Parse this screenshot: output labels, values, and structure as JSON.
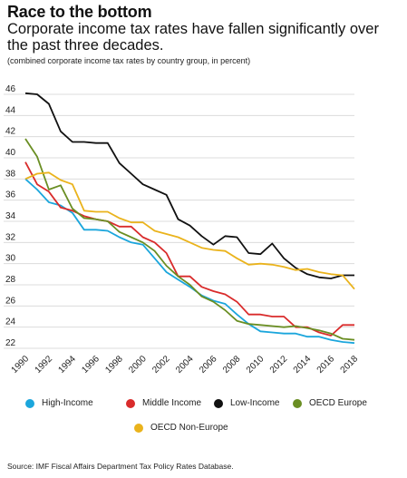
{
  "title": "Race to the bottom",
  "subtitle": "Corporate income tax rates have fallen significantly over the past three decades.",
  "note": "(combined corporate income tax rates by country group, in percent)",
  "source": "Source: IMF Fiscal Affairs Department Tax Policy Rates Database.",
  "chart_data": {
    "type": "line",
    "title": "Race to the bottom",
    "subtitle": "Corporate income tax rates have fallen significantly over the past three decades.",
    "xlabel": "",
    "ylabel": "",
    "x": [
      1990,
      1991,
      1992,
      1993,
      1994,
      1995,
      1996,
      1997,
      1998,
      1999,
      2000,
      2001,
      2002,
      2003,
      2004,
      2005,
      2006,
      2007,
      2008,
      2009,
      2010,
      2011,
      2012,
      2013,
      2014,
      2015,
      2016,
      2017,
      2018
    ],
    "xticks": [
      "1990",
      "1992",
      "1994",
      "1996",
      "1998",
      "2000",
      "2002",
      "2004",
      "2006",
      "2008",
      "2010",
      "2012",
      "2014",
      "2016",
      "2018"
    ],
    "yticks": [
      "22",
      "24",
      "26",
      "28",
      "30",
      "32",
      "34",
      "36",
      "38",
      "40",
      "42",
      "44",
      "46"
    ],
    "ylim": [
      22,
      46
    ],
    "grid": true,
    "legend_position": "bottom",
    "series": [
      {
        "name": "High-Income",
        "color": "#1ba6dc",
        "values": [
          38.0,
          37.0,
          35.8,
          35.5,
          34.8,
          33.2,
          33.2,
          33.1,
          32.5,
          32.0,
          31.8,
          30.5,
          29.2,
          28.5,
          27.8,
          27.0,
          26.5,
          26.2,
          25.2,
          24.3,
          23.6,
          23.5,
          23.4,
          23.4,
          23.1,
          23.1,
          22.8,
          22.6,
          22.5
        ]
      },
      {
        "name": "Middle Income",
        "color": "#d92b2b",
        "values": [
          39.6,
          37.5,
          36.8,
          35.3,
          35.0,
          34.5,
          34.2,
          34.0,
          33.5,
          33.5,
          32.5,
          32.0,
          31.0,
          28.8,
          28.8,
          27.8,
          27.4,
          27.1,
          26.4,
          25.2,
          25.2,
          25.0,
          25.0,
          24.0,
          24.0,
          23.5,
          23.2,
          24.2,
          24.2
        ]
      },
      {
        "name": "Low-Income",
        "color": "#111111",
        "values": [
          46.1,
          46.0,
          45.1,
          42.5,
          41.5,
          41.5,
          41.4,
          41.4,
          39.5,
          38.5,
          37.5,
          37.0,
          36.5,
          34.2,
          33.6,
          32.6,
          31.8,
          32.6,
          32.5,
          31.0,
          30.9,
          31.9,
          30.5,
          29.6,
          29.0,
          28.7,
          28.6,
          28.9,
          28.9
        ]
      },
      {
        "name": "OECD Europe",
        "color": "#6a8e23",
        "values": [
          41.8,
          40.1,
          37.0,
          37.4,
          35.2,
          34.3,
          34.2,
          34.0,
          33.0,
          32.5,
          32.0,
          31.2,
          29.8,
          28.8,
          28.0,
          26.9,
          26.4,
          25.6,
          24.6,
          24.3,
          24.2,
          24.1,
          24.0,
          24.1,
          23.9,
          23.7,
          23.4,
          22.9,
          22.8
        ]
      },
      {
        "name": "OECD Non-Europe",
        "color": "#eab31c",
        "values": [
          38.0,
          38.5,
          38.6,
          37.9,
          37.5,
          35.0,
          34.9,
          34.9,
          34.3,
          33.9,
          33.9,
          33.1,
          32.8,
          32.5,
          32.0,
          31.5,
          31.3,
          31.2,
          30.5,
          29.9,
          30.0,
          29.9,
          29.7,
          29.4,
          29.5,
          29.2,
          29.0,
          28.9,
          27.6
        ]
      }
    ]
  }
}
